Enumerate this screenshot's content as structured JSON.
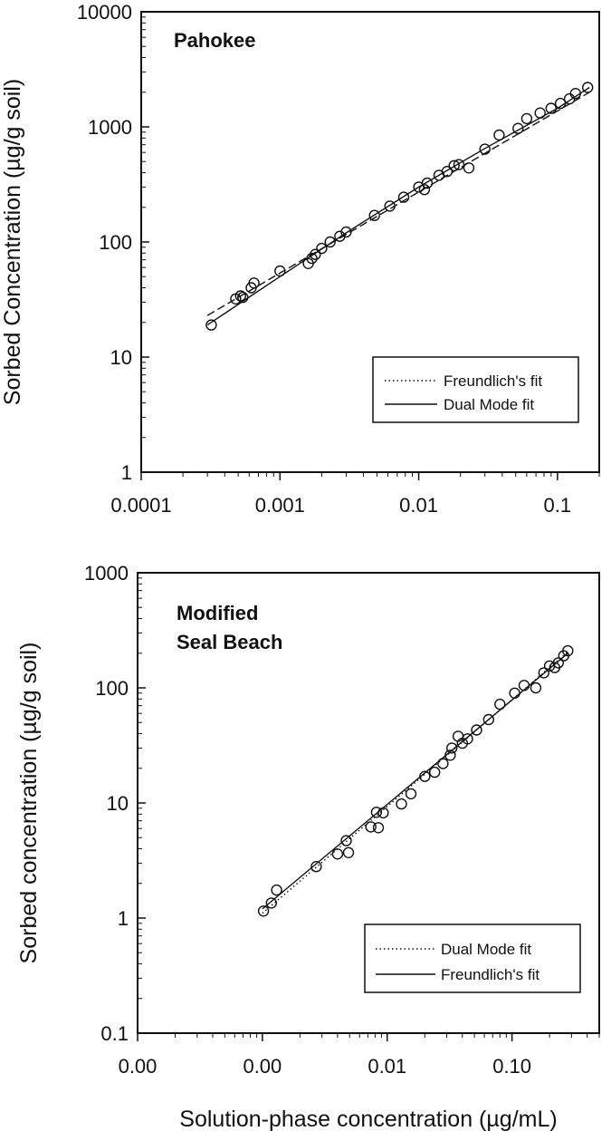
{
  "chart_data": [
    {
      "type": "scatter",
      "panel_label": "Pahokee",
      "ylabel": "Sorbed Concentration (µg/g soil)",
      "xlabel": "",
      "xscale": "log",
      "yscale": "log",
      "xlim": [
        0.0001,
        0.2
      ],
      "ylim": [
        1,
        10000
      ],
      "x_ticks": [
        0.0001,
        0.001,
        0.01,
        0.1
      ],
      "x_tick_labels": [
        "0.0001",
        "0.001",
        "0.01",
        "0.1"
      ],
      "y_ticks": [
        1,
        10,
        100,
        1000,
        10000
      ],
      "y_tick_labels": [
        "1",
        "10",
        "100",
        "1000",
        "10000"
      ],
      "grid": false,
      "legend_position": "bottom-right",
      "legend": [
        {
          "label": "Freundlich's fit",
          "style": "dotted"
        },
        {
          "label": "Dual Mode fit",
          "style": "solid"
        }
      ],
      "points": [
        [
          0.00032,
          19
        ],
        [
          0.00048,
          32
        ],
        [
          0.00052,
          34
        ],
        [
          0.00054,
          33
        ],
        [
          0.00062,
          40
        ],
        [
          0.00065,
          44
        ],
        [
          0.001,
          56
        ],
        [
          0.0016,
          65
        ],
        [
          0.0017,
          72
        ],
        [
          0.0018,
          78
        ],
        [
          0.002,
          88
        ],
        [
          0.0023,
          100
        ],
        [
          0.0027,
          112
        ],
        [
          0.003,
          122
        ],
        [
          0.0048,
          170
        ],
        [
          0.0062,
          205
        ],
        [
          0.0078,
          245
        ],
        [
          0.01,
          300
        ],
        [
          0.011,
          285
        ],
        [
          0.0115,
          325
        ],
        [
          0.014,
          380
        ],
        [
          0.016,
          410
        ],
        [
          0.018,
          460
        ],
        [
          0.0195,
          470
        ],
        [
          0.023,
          440
        ],
        [
          0.03,
          640
        ],
        [
          0.038,
          850
        ],
        [
          0.052,
          970
        ],
        [
          0.06,
          1180
        ],
        [
          0.075,
          1320
        ],
        [
          0.09,
          1450
        ],
        [
          0.105,
          1600
        ],
        [
          0.122,
          1750
        ],
        [
          0.135,
          1950
        ],
        [
          0.165,
          2200
        ]
      ],
      "series": [
        {
          "name": "Freundlich's fit",
          "style": "dashed",
          "x": [
            0.0003,
            0.17
          ],
          "y": [
            23,
            2000
          ]
        },
        {
          "name": "Dual Mode fit",
          "style": "solid",
          "x": [
            0.0003,
            0.001,
            0.003,
            0.01,
            0.03,
            0.1,
            0.17
          ],
          "y": [
            19,
            50,
            120,
            300,
            650,
            1450,
            2200
          ]
        }
      ]
    },
    {
      "type": "scatter",
      "panel_label_lines": [
        "Modified",
        "Seal Beach"
      ],
      "ylabel": "Sorbed concentration (µg/g soil)",
      "xlabel": "Solution-phase concentration (µg/mL)",
      "xscale": "log",
      "yscale": "log",
      "xlim": [
        0.0001,
        0.5
      ],
      "ylim": [
        0.1,
        1000
      ],
      "x_ticks": [
        0.0001,
        0.001,
        0.01,
        0.1
      ],
      "x_tick_labels": [
        "0.00",
        "0.00",
        "0.01",
        "0.10"
      ],
      "y_ticks": [
        0.1,
        1,
        10,
        100,
        1000
      ],
      "y_tick_labels": [
        "0.1",
        "1",
        "10",
        "100",
        "1000"
      ],
      "grid": false,
      "legend_position": "bottom-right",
      "legend": [
        {
          "label": "Dual Mode fit",
          "style": "dotted"
        },
        {
          "label": "Freundlich's fit",
          "style": "solid"
        }
      ],
      "points": [
        [
          0.00102,
          1.15
        ],
        [
          0.00118,
          1.35
        ],
        [
          0.0013,
          1.75
        ],
        [
          0.0027,
          2.8
        ],
        [
          0.004,
          3.6
        ],
        [
          0.0047,
          4.7
        ],
        [
          0.0049,
          3.7
        ],
        [
          0.0074,
          6.2
        ],
        [
          0.0082,
          8.3
        ],
        [
          0.0085,
          6.1
        ],
        [
          0.0093,
          8.2
        ],
        [
          0.013,
          9.8
        ],
        [
          0.0155,
          12
        ],
        [
          0.02,
          17
        ],
        [
          0.024,
          18.5
        ],
        [
          0.028,
          22
        ],
        [
          0.032,
          26
        ],
        [
          0.033,
          30
        ],
        [
          0.037,
          38
        ],
        [
          0.04,
          33
        ],
        [
          0.044,
          36
        ],
        [
          0.052,
          43
        ],
        [
          0.065,
          53
        ],
        [
          0.08,
          72
        ],
        [
          0.105,
          90
        ],
        [
          0.125,
          105
        ],
        [
          0.155,
          100
        ],
        [
          0.18,
          135
        ],
        [
          0.2,
          155
        ],
        [
          0.22,
          150
        ],
        [
          0.235,
          165
        ],
        [
          0.26,
          190
        ],
        [
          0.28,
          210
        ]
      ],
      "series": [
        {
          "name": "Dual Mode fit",
          "style": "dotted",
          "x": [
            0.001,
            0.28
          ],
          "y": [
            1.1,
            205
          ]
        },
        {
          "name": "Freundlich's fit",
          "style": "solid",
          "x": [
            0.001,
            0.28
          ],
          "y": [
            1.2,
            200
          ]
        }
      ]
    }
  ]
}
